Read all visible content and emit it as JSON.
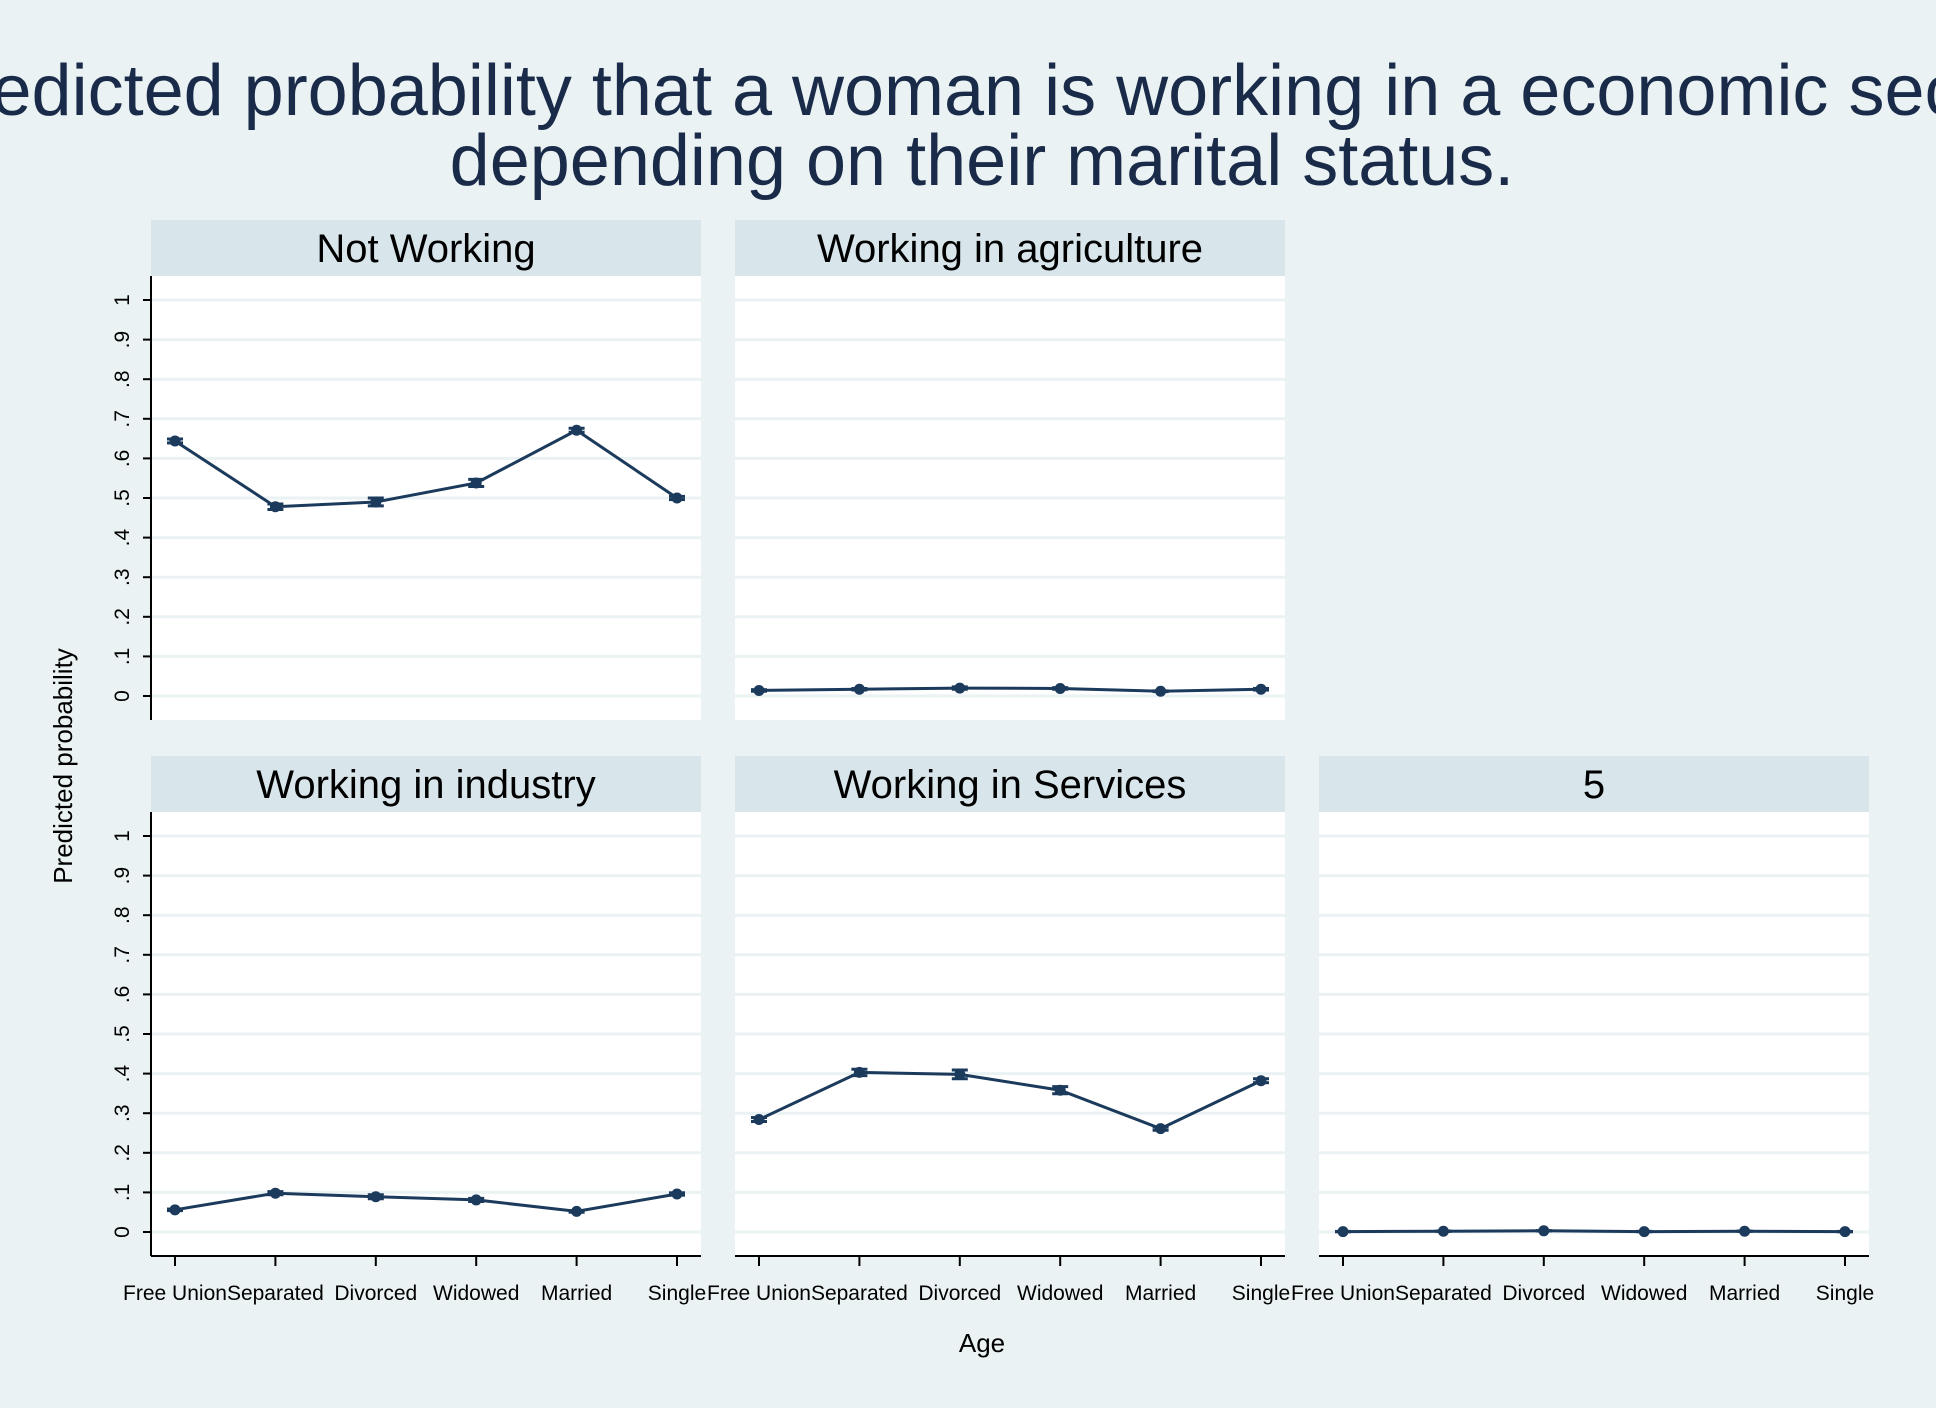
{
  "chart_data": {
    "type": "line",
    "title_lines": [
      "Predicted probability that a woman is working in a economic sector",
      "depending on their marital status."
    ],
    "xlabel": "Age",
    "ylabel": "Predicted probability",
    "categories": [
      "Free Union",
      "Separated",
      "Divorced",
      "Widowed",
      "Married",
      "Single"
    ],
    "yticks": [
      "0",
      ".1",
      ".2",
      ".3",
      ".4",
      ".5",
      ".6",
      ".7",
      ".8",
      ".9",
      "1"
    ],
    "ylim": [
      0,
      1
    ],
    "grid": true,
    "colors": {
      "background": "#eaf2f3",
      "strip": "#d8e5ea",
      "series": "#1b3a5c",
      "grid": "#eaf2f3",
      "plot": "#ffffff"
    },
    "panels": [
      {
        "label": "Not Working",
        "values": [
          0.644,
          0.478,
          0.49,
          0.538,
          0.671,
          0.5
        ],
        "ci": [
          0.005,
          0.007,
          0.01,
          0.009,
          0.005,
          0.004
        ]
      },
      {
        "label": "Working in agriculture",
        "values": [
          0.014,
          0.017,
          0.02,
          0.019,
          0.012,
          0.017
        ],
        "ci": [
          0.002,
          0.002,
          0.003,
          0.002,
          0.001,
          0.002
        ]
      },
      {
        "label": "Working in industry",
        "values": [
          0.056,
          0.098,
          0.089,
          0.081,
          0.052,
          0.096
        ],
        "ci": [
          0.002,
          0.004,
          0.005,
          0.004,
          0.002,
          0.003
        ]
      },
      {
        "label": "Working in Services",
        "values": [
          0.284,
          0.403,
          0.398,
          0.358,
          0.261,
          0.382
        ],
        "ci": [
          0.005,
          0.008,
          0.011,
          0.009,
          0.004,
          0.005
        ]
      },
      {
        "label": "5",
        "values": [
          0.001,
          0.002,
          0.003,
          0.001,
          0.002,
          0.001
        ],
        "ci": [
          0.0005,
          0.0005,
          0.0005,
          0.0005,
          0.0005,
          0.0005
        ]
      }
    ]
  }
}
